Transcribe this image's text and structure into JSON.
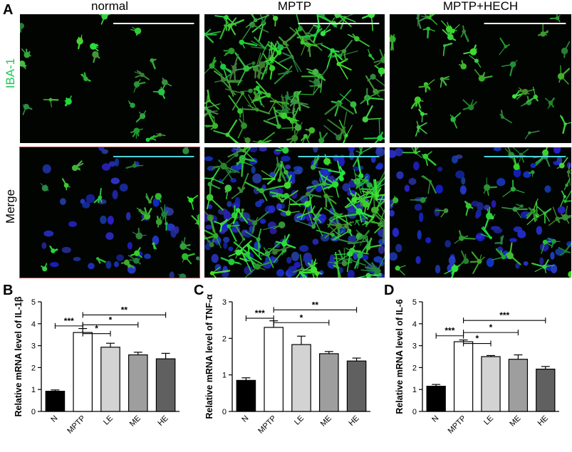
{
  "panel_a": {
    "letter": "A",
    "columns": [
      "normal",
      "MPTP",
      "MPTP+HECH"
    ],
    "rows": [
      {
        "label": "IBA-1",
        "color": "#1ec85a"
      },
      {
        "label": "Merge",
        "color": "#000000"
      }
    ]
  },
  "chart_data": [
    {
      "letter": "B",
      "type": "bar",
      "title": "",
      "ylabel": "Relative mRNA level of IL-1β",
      "xlabel": "",
      "categories": [
        "N",
        "MPTP",
        "LE",
        "ME",
        "HE"
      ],
      "values": [
        0.92,
        3.6,
        2.93,
        2.58,
        2.4
      ],
      "errors": [
        0.06,
        0.18,
        0.18,
        0.12,
        0.25
      ],
      "ylim": [
        0,
        5
      ],
      "yticks": [
        "0",
        "1",
        "2",
        "3",
        "4",
        "5"
      ],
      "colors": [
        "#000000",
        "#ffffff",
        "#d3d3d3",
        "#9e9e9e",
        "#606060"
      ],
      "significance": [
        {
          "from": "N",
          "to": "MPTP",
          "label": "***",
          "y": 3.9
        },
        {
          "from": "MPTP",
          "to": "LE",
          "label": "*",
          "y": 3.55
        },
        {
          "from": "MPTP",
          "to": "ME",
          "label": "*",
          "y": 3.95
        },
        {
          "from": "MPTP",
          "to": "HE",
          "label": "**",
          "y": 4.4
        }
      ]
    },
    {
      "letter": "C",
      "type": "bar",
      "title": "",
      "ylabel": "Relative mRNA level of TNF-α",
      "xlabel": "",
      "categories": [
        "N",
        "MPTP",
        "LE",
        "ME",
        "HE"
      ],
      "values": [
        0.85,
        2.3,
        1.83,
        1.58,
        1.38
      ],
      "errors": [
        0.07,
        0.18,
        0.23,
        0.06,
        0.08
      ],
      "ylim": [
        0,
        3
      ],
      "yticks": [
        "0",
        "1",
        "2",
        "3"
      ],
      "colors": [
        "#000000",
        "#ffffff",
        "#d3d3d3",
        "#9e9e9e",
        "#606060"
      ],
      "significance": [
        {
          "from": "N",
          "to": "MPTP",
          "label": "***",
          "y": 2.55
        },
        {
          "from": "MPTP",
          "to": "ME",
          "label": "*",
          "y": 2.43
        },
        {
          "from": "MPTP",
          "to": "HE",
          "label": "**",
          "y": 2.78
        }
      ]
    },
    {
      "letter": "D",
      "type": "bar",
      "title": "",
      "ylabel": "Relative mRNA level of IL-6",
      "xlabel": "",
      "categories": [
        "N",
        "MPTP",
        "LE",
        "ME",
        "HE"
      ],
      "values": [
        1.15,
        3.18,
        2.5,
        2.38,
        1.93
      ],
      "errors": [
        0.08,
        0.08,
        0.05,
        0.2,
        0.12
      ],
      "ylim": [
        0,
        5
      ],
      "yticks": [
        "0",
        "1",
        "2",
        "3",
        "4",
        "5"
      ],
      "colors": [
        "#000000",
        "#ffffff",
        "#d3d3d3",
        "#9e9e9e",
        "#606060"
      ],
      "significance": [
        {
          "from": "N",
          "to": "MPTP",
          "label": "***",
          "y": 3.45
        },
        {
          "from": "MPTP",
          "to": "LE",
          "label": "*",
          "y": 3.1
        },
        {
          "from": "MPTP",
          "to": "ME",
          "label": "*",
          "y": 3.6
        },
        {
          "from": "MPTP",
          "to": "HE",
          "label": "***",
          "y": 4.15
        }
      ]
    }
  ]
}
